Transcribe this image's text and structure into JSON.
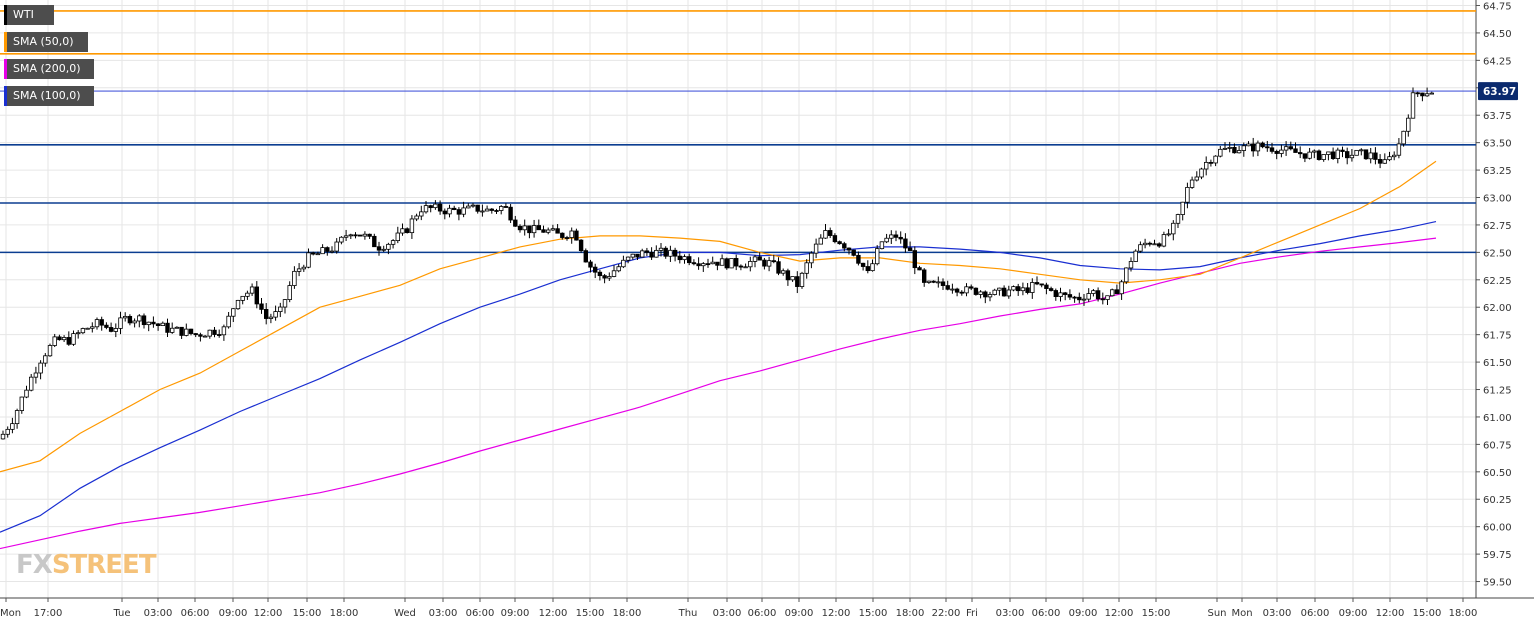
{
  "chart_data": {
    "type": "candlestick",
    "symbol": "WTI",
    "last_price": "63.97",
    "legend": [
      {
        "label": "WTI",
        "color": "#000000"
      },
      {
        "label": "SMA (50,0)",
        "color": "#ff9900"
      },
      {
        "label": "SMA (200,0)",
        "color": "#e600e6"
      },
      {
        "label": "SMA (100,0)",
        "color": "#1a2fd1"
      }
    ],
    "ylim": [
      59.35,
      64.8
    ],
    "y_ticks": [
      "64.75",
      "64.50",
      "64.25",
      "64.00",
      "63.75",
      "63.50",
      "63.25",
      "63.00",
      "62.75",
      "62.50",
      "62.25",
      "62.00",
      "61.75",
      "61.50",
      "61.25",
      "61.00",
      "60.75",
      "60.50",
      "60.25",
      "60.00",
      "59.75",
      "59.50"
    ],
    "x_ticks": [
      "Mon",
      "17:00",
      "Tue",
      "03:00",
      "06:00",
      "09:00",
      "12:00",
      "15:00",
      "18:00",
      "Wed",
      "03:00",
      "06:00",
      "09:00",
      "12:00",
      "15:00",
      "18:00",
      "Thu",
      "03:00",
      "06:00",
      "09:00",
      "12:00",
      "15:00",
      "18:00",
      "22:00",
      "Fri",
      "03:00",
      "06:00",
      "09:00",
      "12:00",
      "15:00",
      "Sun",
      "Mon",
      "03:00",
      "06:00",
      "09:00",
      "12:00",
      "15:00",
      "18:00"
    ],
    "horizontal_levels": [
      {
        "value": 64.7,
        "color": "#ff9900"
      },
      {
        "value": 64.31,
        "color": "#ff9900"
      },
      {
        "value": 63.48,
        "color": "#0b3d91"
      },
      {
        "value": 62.95,
        "color": "#0b3d91"
      },
      {
        "value": 62.5,
        "color": "#0b3d91"
      }
    ],
    "current_line": {
      "value": 63.97,
      "color": "#1a2fd1"
    },
    "close_path": [
      [
        0,
        60.8
      ],
      [
        14,
        61.0
      ],
      [
        28,
        61.3
      ],
      [
        42,
        61.55
      ],
      [
        56,
        61.7
      ],
      [
        70,
        61.7
      ],
      [
        84,
        61.8
      ],
      [
        98,
        61.85
      ],
      [
        112,
        61.8
      ],
      [
        126,
        61.9
      ],
      [
        140,
        61.9
      ],
      [
        154,
        61.85
      ],
      [
        168,
        61.8
      ],
      [
        182,
        61.78
      ],
      [
        196,
        61.75
      ],
      [
        210,
        61.78
      ],
      [
        224,
        61.8
      ],
      [
        238,
        62.1
      ],
      [
        252,
        62.15
      ],
      [
        266,
        61.9
      ],
      [
        280,
        61.95
      ],
      [
        294,
        62.3
      ],
      [
        308,
        62.45
      ],
      [
        322,
        62.5
      ],
      [
        336,
        62.55
      ],
      [
        350,
        62.7
      ],
      [
        364,
        62.65
      ],
      [
        378,
        62.55
      ],
      [
        392,
        62.6
      ],
      [
        406,
        62.7
      ],
      [
        420,
        62.9
      ],
      [
        434,
        62.9
      ],
      [
        448,
        62.88
      ],
      [
        462,
        62.88
      ],
      [
        476,
        62.9
      ],
      [
        490,
        62.88
      ],
      [
        504,
        62.92
      ],
      [
        518,
        62.75
      ],
      [
        532,
        62.7
      ],
      [
        546,
        62.7
      ],
      [
        560,
        62.65
      ],
      [
        574,
        62.7
      ],
      [
        588,
        62.4
      ],
      [
        602,
        62.25
      ],
      [
        616,
        62.35
      ],
      [
        630,
        62.45
      ],
      [
        644,
        62.5
      ],
      [
        658,
        62.5
      ],
      [
        672,
        62.48
      ],
      [
        686,
        62.45
      ],
      [
        700,
        62.42
      ],
      [
        714,
        62.42
      ],
      [
        728,
        62.4
      ],
      [
        742,
        62.4
      ],
      [
        756,
        62.42
      ],
      [
        770,
        62.4
      ],
      [
        784,
        62.3
      ],
      [
        798,
        62.2
      ],
      [
        812,
        62.5
      ],
      [
        826,
        62.68
      ],
      [
        840,
        62.6
      ],
      [
        854,
        62.5
      ],
      [
        868,
        62.3
      ],
      [
        882,
        62.6
      ],
      [
        896,
        62.65
      ],
      [
        910,
        62.5
      ],
      [
        924,
        62.2
      ],
      [
        938,
        62.2
      ],
      [
        952,
        62.2
      ],
      [
        966,
        62.15
      ],
      [
        980,
        62.15
      ],
      [
        994,
        62.12
      ],
      [
        1008,
        62.15
      ],
      [
        1022,
        62.15
      ],
      [
        1036,
        62.2
      ],
      [
        1050,
        62.15
      ],
      [
        1064,
        62.1
      ],
      [
        1078,
        62.08
      ],
      [
        1092,
        62.15
      ],
      [
        1106,
        62.05
      ],
      [
        1120,
        62.2
      ],
      [
        1134,
        62.5
      ],
      [
        1148,
        62.6
      ],
      [
        1162,
        62.6
      ],
      [
        1176,
        62.75
      ],
      [
        1190,
        63.15
      ],
      [
        1204,
        63.3
      ],
      [
        1218,
        63.42
      ],
      [
        1232,
        63.45
      ],
      [
        1246,
        63.45
      ],
      [
        1260,
        63.47
      ],
      [
        1274,
        63.45
      ],
      [
        1288,
        63.42
      ],
      [
        1302,
        63.4
      ],
      [
        1316,
        63.38
      ],
      [
        1330,
        63.4
      ],
      [
        1344,
        63.38
      ],
      [
        1358,
        63.4
      ],
      [
        1372,
        63.38
      ],
      [
        1386,
        63.3
      ],
      [
        1400,
        63.5
      ],
      [
        1414,
        63.95
      ],
      [
        1428,
        63.97
      ],
      [
        1436,
        63.97
      ]
    ],
    "sma50": [
      [
        0,
        60.5
      ],
      [
        40,
        60.6
      ],
      [
        80,
        60.85
      ],
      [
        120,
        61.05
      ],
      [
        160,
        61.25
      ],
      [
        200,
        61.4
      ],
      [
        240,
        61.6
      ],
      [
        280,
        61.8
      ],
      [
        320,
        62.0
      ],
      [
        360,
        62.1
      ],
      [
        400,
        62.2
      ],
      [
        440,
        62.35
      ],
      [
        480,
        62.45
      ],
      [
        520,
        62.55
      ],
      [
        560,
        62.62
      ],
      [
        600,
        62.65
      ],
      [
        640,
        62.65
      ],
      [
        680,
        62.63
      ],
      [
        720,
        62.6
      ],
      [
        760,
        62.5
      ],
      [
        800,
        62.42
      ],
      [
        840,
        62.45
      ],
      [
        880,
        62.45
      ],
      [
        920,
        62.4
      ],
      [
        960,
        62.38
      ],
      [
        1000,
        62.35
      ],
      [
        1040,
        62.3
      ],
      [
        1080,
        62.25
      ],
      [
        1120,
        62.22
      ],
      [
        1160,
        62.25
      ],
      [
        1200,
        62.3
      ],
      [
        1240,
        62.45
      ],
      [
        1280,
        62.6
      ],
      [
        1320,
        62.75
      ],
      [
        1360,
        62.9
      ],
      [
        1400,
        63.1
      ],
      [
        1436,
        63.33
      ]
    ],
    "sma100": [
      [
        0,
        59.95
      ],
      [
        40,
        60.1
      ],
      [
        80,
        60.35
      ],
      [
        120,
        60.55
      ],
      [
        160,
        60.72
      ],
      [
        200,
        60.88
      ],
      [
        240,
        61.05
      ],
      [
        280,
        61.2
      ],
      [
        320,
        61.35
      ],
      [
        360,
        61.52
      ],
      [
        400,
        61.68
      ],
      [
        440,
        61.85
      ],
      [
        480,
        62.0
      ],
      [
        520,
        62.12
      ],
      [
        560,
        62.25
      ],
      [
        600,
        62.35
      ],
      [
        640,
        62.45
      ],
      [
        680,
        62.5
      ],
      [
        720,
        62.5
      ],
      [
        760,
        62.47
      ],
      [
        800,
        62.48
      ],
      [
        840,
        62.52
      ],
      [
        880,
        62.55
      ],
      [
        920,
        62.55
      ],
      [
        960,
        62.53
      ],
      [
        1000,
        62.5
      ],
      [
        1040,
        62.45
      ],
      [
        1080,
        62.38
      ],
      [
        1120,
        62.35
      ],
      [
        1160,
        62.34
      ],
      [
        1200,
        62.37
      ],
      [
        1240,
        62.45
      ],
      [
        1280,
        62.52
      ],
      [
        1320,
        62.58
      ],
      [
        1360,
        62.65
      ],
      [
        1400,
        62.71
      ],
      [
        1436,
        62.78
      ]
    ],
    "sma200": [
      [
        0,
        59.8
      ],
      [
        40,
        59.88
      ],
      [
        80,
        59.96
      ],
      [
        120,
        60.03
      ],
      [
        160,
        60.08
      ],
      [
        200,
        60.13
      ],
      [
        240,
        60.19
      ],
      [
        280,
        60.25
      ],
      [
        320,
        60.31
      ],
      [
        360,
        60.39
      ],
      [
        400,
        60.48
      ],
      [
        440,
        60.58
      ],
      [
        480,
        60.69
      ],
      [
        520,
        60.79
      ],
      [
        560,
        60.89
      ],
      [
        600,
        60.99
      ],
      [
        640,
        61.09
      ],
      [
        680,
        61.21
      ],
      [
        720,
        61.33
      ],
      [
        760,
        61.42
      ],
      [
        800,
        61.52
      ],
      [
        840,
        61.62
      ],
      [
        880,
        61.71
      ],
      [
        920,
        61.79
      ],
      [
        960,
        61.85
      ],
      [
        1000,
        61.92
      ],
      [
        1040,
        61.98
      ],
      [
        1080,
        62.03
      ],
      [
        1120,
        62.12
      ],
      [
        1160,
        62.22
      ],
      [
        1200,
        62.31
      ],
      [
        1240,
        62.4
      ],
      [
        1280,
        62.46
      ],
      [
        1320,
        62.51
      ],
      [
        1360,
        62.55
      ],
      [
        1400,
        62.59
      ],
      [
        1436,
        62.63
      ]
    ],
    "grid": true,
    "colors": {
      "up_candle": "#ffffff",
      "down_candle": "#000000",
      "grid": "#e6e6e6",
      "axis_bg": "#ffffff"
    }
  },
  "legend_labels": {
    "wti": "WTI",
    "sma50": "SMA (50,0)",
    "sma200": "SMA (200,0)",
    "sma100": "SMA (100,0)"
  },
  "logo": {
    "part1": "FX",
    "part2": "STREET"
  }
}
